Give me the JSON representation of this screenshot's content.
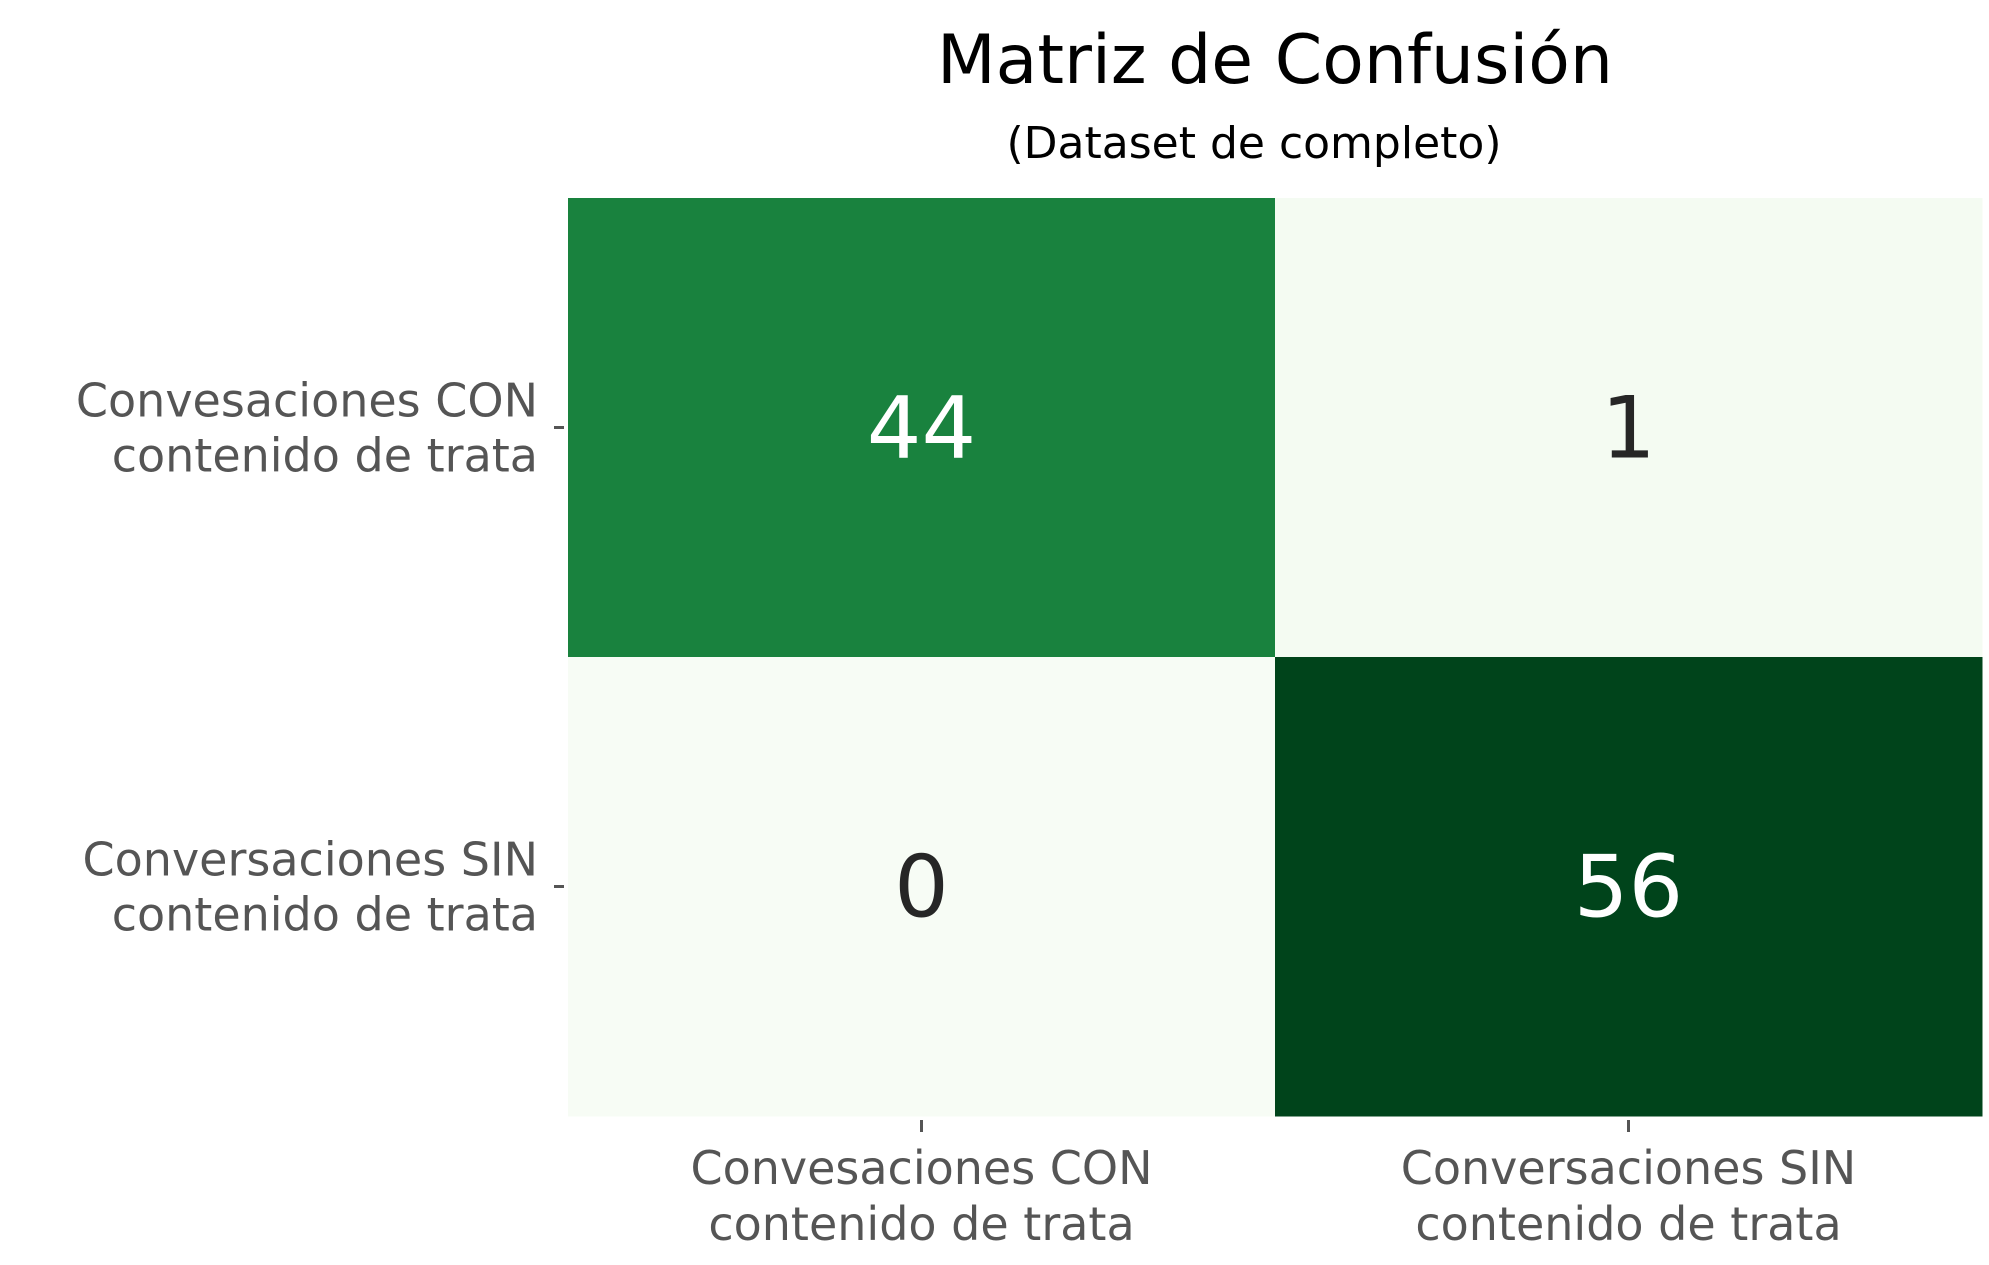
{
  "chart_data": {
    "type": "heatmap",
    "title": "Matriz de Confusión",
    "subtitle": "(Dataset de completo)",
    "row_labels": [
      [
        "Convesaciones CON",
        "contenido de trata"
      ],
      [
        "Conversaciones SIN",
        "contenido de trata"
      ]
    ],
    "col_labels": [
      [
        "Convesaciones CON",
        "contenido de trata"
      ],
      [
        "Conversaciones SIN",
        "contenido de trata"
      ]
    ],
    "values": [
      [
        44,
        1
      ],
      [
        0,
        56
      ]
    ],
    "colormap": "Greens",
    "colorbar": false,
    "colors": {
      "low": "#f7fcf5",
      "mid": "#74c476",
      "high": "#00441b",
      "text_dark": "#262626",
      "text_light": "#ffffff"
    }
  }
}
